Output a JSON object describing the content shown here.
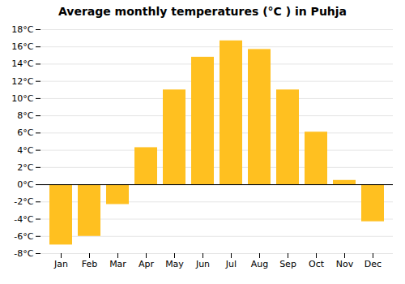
{
  "chart_data": {
    "type": "bar",
    "title": "Average monthly temperatures (°C ) in Puhja",
    "categories": [
      "Jan",
      "Feb",
      "Mar",
      "Apr",
      "May",
      "Jun",
      "Jul",
      "Aug",
      "Sep",
      "Oct",
      "Nov",
      "Dec"
    ],
    "values": [
      -7.0,
      -6.0,
      -2.3,
      4.3,
      11.0,
      14.8,
      16.7,
      15.7,
      11.0,
      6.1,
      0.5,
      -4.3
    ],
    "color": "#FFC020",
    "ylim": [
      -8,
      18
    ],
    "yticks": [
      {
        "value": -8,
        "label": "-8°C"
      },
      {
        "value": -6,
        "label": "-6°C"
      },
      {
        "value": -4,
        "label": "-4°C"
      },
      {
        "value": -2,
        "label": "-2°C"
      },
      {
        "value": 0,
        "label": "0°C"
      },
      {
        "value": 2,
        "label": "2°C"
      },
      {
        "value": 4,
        "label": "4°C"
      },
      {
        "value": 6,
        "label": "6°C"
      },
      {
        "value": 8,
        "label": "8°C"
      },
      {
        "value": 10,
        "label": "10°C"
      },
      {
        "value": 12,
        "label": "12°C"
      },
      {
        "value": 14,
        "label": "14°C"
      },
      {
        "value": 16,
        "label": "16°C"
      },
      {
        "value": 18,
        "label": "18°C"
      }
    ],
    "grid": true
  }
}
